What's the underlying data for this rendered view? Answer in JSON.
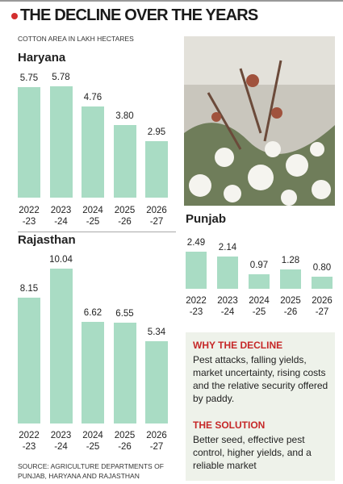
{
  "title": "THE DECLINE OVER THE YEARS",
  "subtitle": "COTTON AREA IN LAKH HECTARES",
  "source": "SOURCE: AGRICULTURE DEPARTMENTS OF PUNJAB, HARYANA AND RAJASTHAN",
  "why": {
    "heading": "WHY THE DECLINE",
    "text": "Pest attacks, falling yields, market uncertainty, rising costs and the relative security offered by paddy."
  },
  "solution": {
    "heading": "THE SOLUTION",
    "text": "Better seed, effective pest control, higher yields, and a reliable market"
  },
  "chart_data": [
    {
      "type": "bar",
      "title": "Haryana",
      "color": "#a9dcc4",
      "categories": [
        "2022\n-23",
        "2023\n-24",
        "2024\n-25",
        "2025\n-26",
        "2026\n-27"
      ],
      "values": [
        5.75,
        5.78,
        4.76,
        3.8,
        2.95
      ],
      "value_labels": [
        "5.75",
        "5.78",
        "4.76",
        "3.80",
        "2.95"
      ]
    },
    {
      "type": "bar",
      "title": "Rajasthan",
      "color": "#a9dcc4",
      "categories": [
        "2022\n-23",
        "2023\n-24",
        "2024\n-25",
        "2025\n-26",
        "2026\n-27"
      ],
      "values": [
        8.15,
        10.04,
        6.62,
        6.55,
        5.34
      ],
      "value_labels": [
        "8.15",
        "10.04",
        "6.62",
        "6.55",
        "5.34"
      ]
    },
    {
      "type": "bar",
      "title": "Punjab",
      "color": "#a9dcc4",
      "categories": [
        "2022\n-23",
        "2023\n-24",
        "2024\n-25",
        "2025\n-26",
        "2026\n-27"
      ],
      "values": [
        2.49,
        2.14,
        0.97,
        1.28,
        0.8
      ],
      "value_labels": [
        "2.49",
        "2.14",
        "0.97",
        "1.28",
        "0.80"
      ]
    }
  ]
}
